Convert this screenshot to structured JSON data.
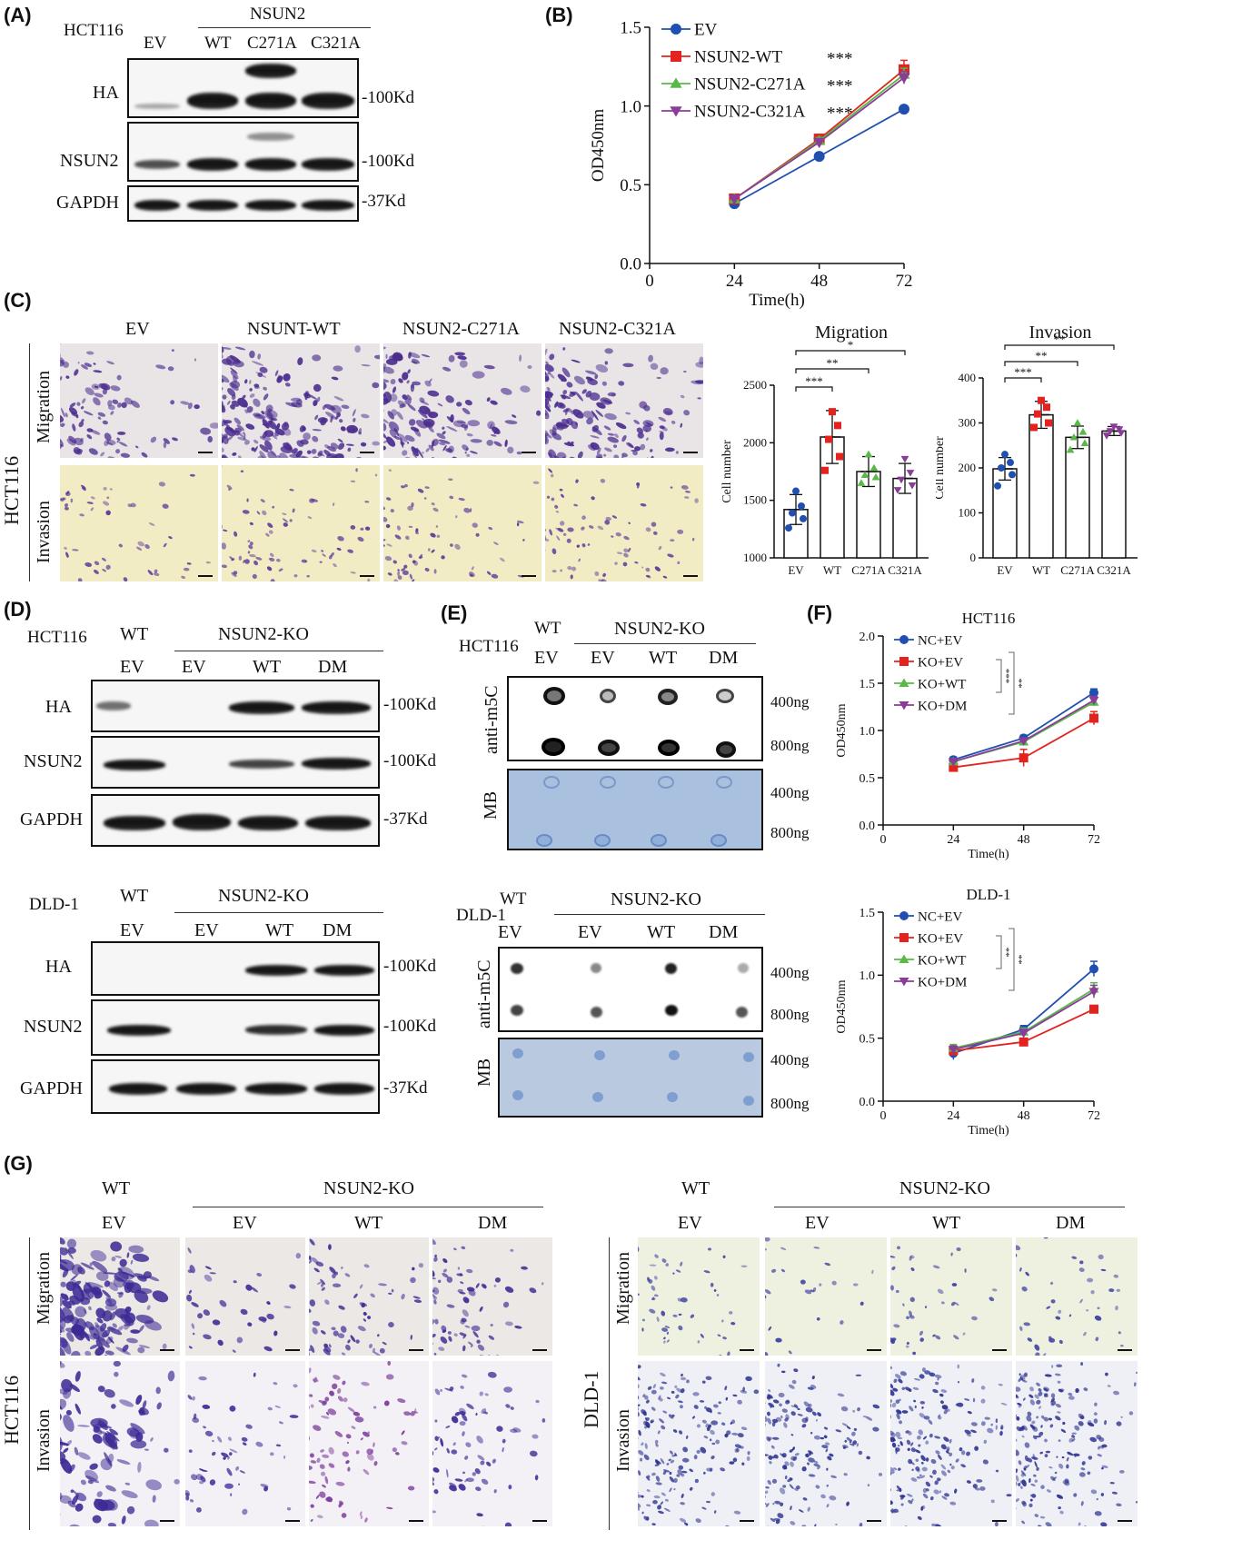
{
  "panels": {
    "A": "(A)",
    "B": "(B)",
    "C": "(C)",
    "D": "(D)",
    "E": "(E)",
    "F": "(F)",
    "G": "(G)"
  },
  "panel_a": {
    "cell": "HCT116",
    "group": "NSUN2",
    "lanes": [
      "EV",
      "WT",
      "C271A",
      "C321A"
    ],
    "rows": [
      "HA",
      "NSUN2",
      "GAPDH"
    ],
    "markers": [
      "-100Kd",
      "-100Kd",
      "-37Kd"
    ]
  },
  "panel_c": {
    "lanes": [
      "EV",
      "NSUNT-WT",
      "NSUN2-C271A",
      "NSUN2-C321A"
    ],
    "cell": "HCT116",
    "rows": [
      "Migration",
      "Invasion"
    ]
  },
  "panel_d": {
    "hct": {
      "cell": "HCT116",
      "wt": "WT",
      "group": "NSUN2-KO",
      "lanes": [
        "EV",
        "EV",
        "WT",
        "DM"
      ],
      "rows": [
        "HA",
        "NSUN2",
        "GAPDH"
      ],
      "markers": [
        "-100Kd",
        "-100Kd",
        "-37Kd"
      ]
    },
    "dld": {
      "cell": "DLD-1",
      "wt": "WT",
      "group": "NSUN2-KO",
      "lanes": [
        "EV",
        "EV",
        "WT",
        "DM"
      ],
      "rows": [
        "HA",
        "NSUN2",
        "GAPDH"
      ],
      "markers": [
        "-100Kd",
        "-100Kd",
        "-37Kd"
      ]
    }
  },
  "panel_e": {
    "hct": {
      "cell": "HCT116",
      "wt": "WT",
      "group": "NSUN2-KO",
      "lanes": [
        "EV",
        "EV",
        "WT",
        "DM"
      ],
      "rows": [
        "anti-m5C",
        "MB"
      ],
      "amounts": [
        "400ng",
        "800ng",
        "400ng",
        "800ng"
      ]
    },
    "dld": {
      "cell": "DLD-1",
      "wt": "WT",
      "group": "NSUN2-KO",
      "lanes": [
        "EV",
        "EV",
        "WT",
        "DM"
      ],
      "rows": [
        "anti-m5C",
        "MB"
      ],
      "amounts": [
        "400ng",
        "800ng",
        "400ng",
        "800ng"
      ]
    }
  },
  "panel_g": {
    "hct": {
      "wt": "WT",
      "group": "NSUN2-KO",
      "lanes": [
        "EV",
        "EV",
        "WT",
        "DM"
      ],
      "cell": "HCT116",
      "rows": [
        "Migration",
        "Invasion"
      ]
    },
    "dld": {
      "wt": "WT",
      "group": "NSUN2-KO",
      "lanes": [
        "EV",
        "EV",
        "WT",
        "DM"
      ],
      "cell": "DLD-1",
      "rows": [
        "Migration",
        "Invasion"
      ]
    }
  },
  "chart_data": [
    {
      "id": "B",
      "type": "line",
      "xlabel": "Time(h)",
      "ylabel": "OD450nm",
      "x": [
        24,
        48,
        72
      ],
      "xlim": [
        0,
        72
      ],
      "ylim": [
        0,
        1.5
      ],
      "xticks": [
        "0",
        "24",
        "48",
        "72"
      ],
      "yticks": [
        "0.0",
        "0.5",
        "1.0",
        "1.5"
      ],
      "legend_position": "top-left",
      "series": [
        {
          "name": "EV",
          "color": "#1f4fb0",
          "marker": "circle",
          "values": [
            0.38,
            0.68,
            0.98
          ],
          "err": [
            0.01,
            0.01,
            0.01
          ],
          "sig": ""
        },
        {
          "name": "NSUN2-WT",
          "color": "#e3231f",
          "marker": "square",
          "values": [
            0.41,
            0.79,
            1.23
          ],
          "err": [
            0.01,
            0.03,
            0.06
          ],
          "sig": "***"
        },
        {
          "name": "NSUN2-C271A",
          "color": "#58b947",
          "marker": "triangle-up",
          "values": [
            0.41,
            0.78,
            1.2
          ],
          "err": [
            0.01,
            0.02,
            0.04
          ],
          "sig": "***"
        },
        {
          "name": "NSUN2-C321A",
          "color": "#8a3d97",
          "marker": "triangle-down",
          "values": [
            0.41,
            0.77,
            1.18
          ],
          "err": [
            0.01,
            0.02,
            0.04
          ],
          "sig": "***"
        }
      ]
    },
    {
      "id": "C-mig",
      "type": "bar",
      "title": "Migration",
      "ylabel": "Cell number",
      "categories": [
        "EV",
        "WT",
        "C271A",
        "C321A"
      ],
      "values": [
        1420,
        2050,
        1750,
        1690
      ],
      "err": [
        130,
        230,
        130,
        130
      ],
      "ylim": [
        1000,
        2500
      ],
      "yticks": [
        "1000",
        "1500",
        "2000",
        "2500"
      ],
      "colors": [
        "#1f4fb0",
        "#e3231f",
        "#58b947",
        "#8a3d97"
      ],
      "points": [
        [
          1260,
          1340,
          1390,
          1450,
          1580
        ],
        [
          1760,
          1880,
          2030,
          2150,
          2270
        ],
        [
          1650,
          1700,
          1720,
          1780,
          1900
        ],
        [
          1590,
          1630,
          1680,
          1740,
          1860
        ]
      ],
      "sig": [
        {
          "from": 0,
          "to": 1,
          "label": "***"
        },
        {
          "from": 0,
          "to": 2,
          "label": "**"
        },
        {
          "from": 0,
          "to": 3,
          "label": "*"
        }
      ]
    },
    {
      "id": "C-inv",
      "type": "bar",
      "title": "Invasion",
      "ylabel": "Cell number",
      "categories": [
        "EV",
        "WT",
        "C271A",
        "C321A"
      ],
      "values": [
        198,
        318,
        268,
        282
      ],
      "err": [
        25,
        30,
        25,
        10
      ],
      "ylim": [
        0,
        400
      ],
      "yticks": [
        "0",
        "100",
        "200",
        "300",
        "400"
      ],
      "colors": [
        "#1f4fb0",
        "#e3231f",
        "#58b947",
        "#8a3d97"
      ],
      "points": [
        [
          160,
          185,
          200,
          212,
          230
        ],
        [
          290,
          300,
          320,
          335,
          350
        ],
        [
          240,
          255,
          268,
          280,
          300
        ],
        [
          272,
          278,
          282,
          286,
          292
        ]
      ],
      "sig": [
        {
          "from": 0,
          "to": 1,
          "label": "***"
        },
        {
          "from": 0,
          "to": 2,
          "label": "**"
        },
        {
          "from": 0,
          "to": 3,
          "label": "**"
        }
      ]
    },
    {
      "id": "F-hct",
      "type": "line",
      "title": "HCT116",
      "xlabel": "Time(h)",
      "ylabel": "OD450nm",
      "x": [
        24,
        48,
        72
      ],
      "xlim": [
        0,
        72
      ],
      "ylim": [
        0,
        2.0
      ],
      "xticks": [
        "0",
        "24",
        "48",
        "72"
      ],
      "yticks": [
        "0.0",
        "0.5",
        "1.0",
        "1.5",
        "2.0"
      ],
      "legend_position": "top-left",
      "series": [
        {
          "name": "NC+EV",
          "color": "#1f4fb0",
          "marker": "circle",
          "values": [
            0.69,
            0.92,
            1.4
          ],
          "err": [
            0.03,
            0.03,
            0.04
          ]
        },
        {
          "name": "KO+EV",
          "color": "#e3231f",
          "marker": "square",
          "values": [
            0.61,
            0.71,
            1.13
          ],
          "err": [
            0.03,
            0.09,
            0.07
          ]
        },
        {
          "name": "KO+WT",
          "color": "#58b947",
          "marker": "triangle-up",
          "values": [
            0.67,
            0.88,
            1.3
          ],
          "err": [
            0.03,
            0.03,
            0.04
          ]
        },
        {
          "name": "KO+DM",
          "color": "#8a3d97",
          "marker": "triangle-down",
          "values": [
            0.67,
            0.89,
            1.32
          ],
          "err": [
            0.03,
            0.03,
            0.04
          ]
        }
      ],
      "sig": [
        "***",
        "**"
      ]
    },
    {
      "id": "F-dld",
      "type": "line",
      "title": "DLD-1",
      "xlabel": "Time(h)",
      "ylabel": "OD450nm",
      "x": [
        24,
        48,
        72
      ],
      "xlim": [
        0,
        72
      ],
      "ylim": [
        0,
        1.5
      ],
      "xticks": [
        "0",
        "24",
        "48",
        "72"
      ],
      "yticks": [
        "0.0",
        "0.5",
        "1.0",
        "1.5"
      ],
      "legend_position": "top-left",
      "series": [
        {
          "name": "NC+EV",
          "color": "#1f4fb0",
          "marker": "circle",
          "values": [
            0.38,
            0.57,
            1.05
          ],
          "err": [
            0.05,
            0.03,
            0.06
          ]
        },
        {
          "name": "KO+EV",
          "color": "#e3231f",
          "marker": "square",
          "values": [
            0.4,
            0.47,
            0.73
          ],
          "err": [
            0.03,
            0.02,
            0.03
          ]
        },
        {
          "name": "KO+WT",
          "color": "#58b947",
          "marker": "triangle-up",
          "values": [
            0.42,
            0.55,
            0.89
          ],
          "err": [
            0.03,
            0.03,
            0.05
          ]
        },
        {
          "name": "KO+DM",
          "color": "#8a3d97",
          "marker": "triangle-down",
          "values": [
            0.41,
            0.54,
            0.87
          ],
          "err": [
            0.03,
            0.03,
            0.05
          ]
        }
      ],
      "sig": [
        "**",
        "**"
      ]
    }
  ]
}
